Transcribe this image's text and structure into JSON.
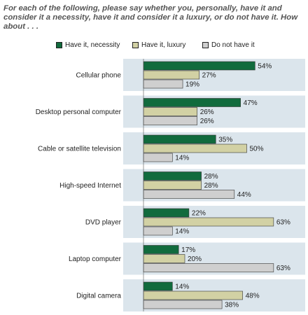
{
  "question": "For each of the following, please say whether you, personally, have it and consider it a necessity, have it and consider it a luxury, or do not have it. How about . . .",
  "legend": {
    "necessity": "Have it, necessity",
    "luxury": "Have it, luxury",
    "none": "Do not have it"
  },
  "colors": {
    "necessity": "#116b3d",
    "luxury": "#d2d1a4",
    "none": "#cfcfcf",
    "band": "#dbe5ec"
  },
  "chart_data": {
    "type": "bar",
    "orientation": "horizontal",
    "categories": [
      "Cellular phone",
      "Desktop personal computer",
      "Cable or satellite television",
      "High-speed Internet",
      "DVD player",
      "Laptop computer",
      "Digital camera"
    ],
    "series": [
      {
        "name": "Have it, necessity",
        "values": [
          54,
          47,
          35,
          28,
          22,
          17,
          14
        ]
      },
      {
        "name": "Have it, luxury",
        "values": [
          27,
          26,
          50,
          28,
          63,
          20,
          48
        ]
      },
      {
        "name": "Do not have it",
        "values": [
          19,
          26,
          14,
          44,
          14,
          63,
          38
        ]
      }
    ],
    "value_suffix": "%",
    "xlim": [
      0,
      100
    ],
    "legend_position": "top"
  }
}
